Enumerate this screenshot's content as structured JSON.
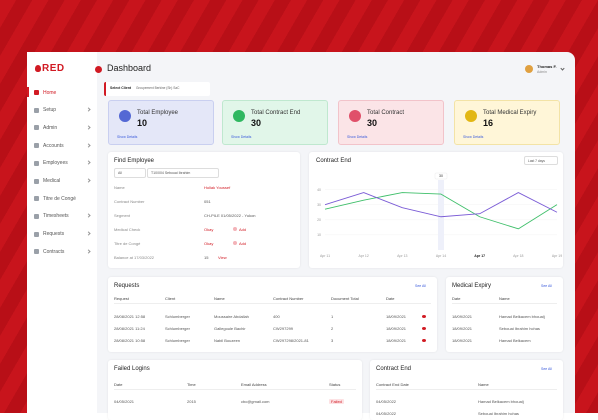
{
  "sidebar": {
    "logo": "RED",
    "menu": [
      "Home",
      "Setup",
      "Admin",
      "Accounts",
      "Employees",
      "Medical",
      "Titre de Congé",
      "Timesheets",
      "Requests",
      "Contracts"
    ]
  },
  "header": {
    "title": "Dashboard",
    "user": "Thomas F.",
    "role": "Admin",
    "select_label": "Select Client",
    "select_value": "Groupement Berkine (Sh) SaC"
  },
  "cards": [
    {
      "title": "Total Employee",
      "value": 10,
      "link": "Show Details"
    },
    {
      "title": "Total Contract End",
      "value": 30,
      "link": "Show Details"
    },
    {
      "title": "Total Contract",
      "value": 30,
      "link": "Show Details"
    },
    {
      "title": "Total Medical Expiry",
      "value": 16,
      "link": "Show Details"
    }
  ],
  "find_employee": {
    "title": "Find Employee",
    "filter": "All",
    "employee": "T10/004 Sebouai Ibrahim",
    "fields": [
      {
        "label": "Name",
        "value": "Hollak Youssef"
      },
      {
        "label": "Contract Number",
        "value": "051"
      },
      {
        "label": "Segment",
        "value": "CH-PILE 01/05/2022 - Yukon"
      },
      {
        "label": "Medical Check",
        "value": "Okay",
        "action": "Add"
      },
      {
        "label": "Titre de Congé",
        "value": "Okay",
        "action": "Add"
      },
      {
        "label": "Balance at 17/03/2022",
        "value": "15",
        "action": "View"
      }
    ]
  },
  "chart_data": {
    "type": "line",
    "title": "Contract End",
    "range": "Last 7 days",
    "categories": [
      "Apr 11",
      "Apr 12",
      "Apr 13",
      "Apr 14",
      "Apr 17",
      "Apr 18",
      "Apr 19"
    ],
    "series": [
      {
        "color": "#3fbf6a",
        "values": [
          27,
          33,
          38,
          37,
          22,
          14,
          30
        ]
      },
      {
        "color": "#7b5cd6",
        "values": [
          30,
          38,
          28,
          22,
          24,
          38,
          25
        ]
      }
    ],
    "ylim": [
      0,
      45
    ],
    "yticks": [
      10,
      20,
      30,
      40
    ],
    "annotation": "30"
  },
  "requests": {
    "title": "Requests",
    "see_all": "See All",
    "columns": [
      "Request",
      "Client",
      "Name",
      "Contract Number",
      "Document Total",
      "Date"
    ],
    "rows": [
      [
        "28/08/2021 12:58",
        "Schlumberger",
        "Moussaire Abdallah",
        "400",
        "1",
        "18/09/2021"
      ],
      [
        "28/08/2021 11:24",
        "Schlumberger",
        "Gallegoule Bachir",
        "CW297299",
        "2",
        "18/09/2021"
      ],
      [
        "28/08/2021 10:58",
        "Schlumberger",
        "Nabil Bouzeen",
        "CW297298/2021-81",
        "3",
        "18/09/2021"
      ]
    ]
  },
  "medical_expiry": {
    "title": "Medical Expiry",
    "see_all": "See All",
    "columns": [
      "Date",
      "Name"
    ],
    "rows": [
      [
        "18/09/2021",
        "Hamad Belkacem bhoualj"
      ],
      [
        "18/09/2021",
        "Sebouai Ibrahim hchas"
      ],
      [
        "18/09/2021",
        "Hamad Belkacem"
      ]
    ]
  },
  "failed_logins": {
    "title": "Failed Logins",
    "columns": [
      "Date",
      "Time",
      "Email Address",
      "Status"
    ],
    "rows": [
      [
        "04/05/2021",
        "2015",
        "cbc@gmail.com",
        "Failed"
      ]
    ]
  },
  "contract_end": {
    "title": "Contract End",
    "see_all": "See All",
    "columns": [
      "Contract End Date",
      "Name"
    ],
    "rows": [
      [
        "04/05/2022",
        "Hamad Belkacem bhoualj"
      ],
      [
        "04/05/2022",
        "Sebouai Ibrahim hchas"
      ]
    ]
  }
}
